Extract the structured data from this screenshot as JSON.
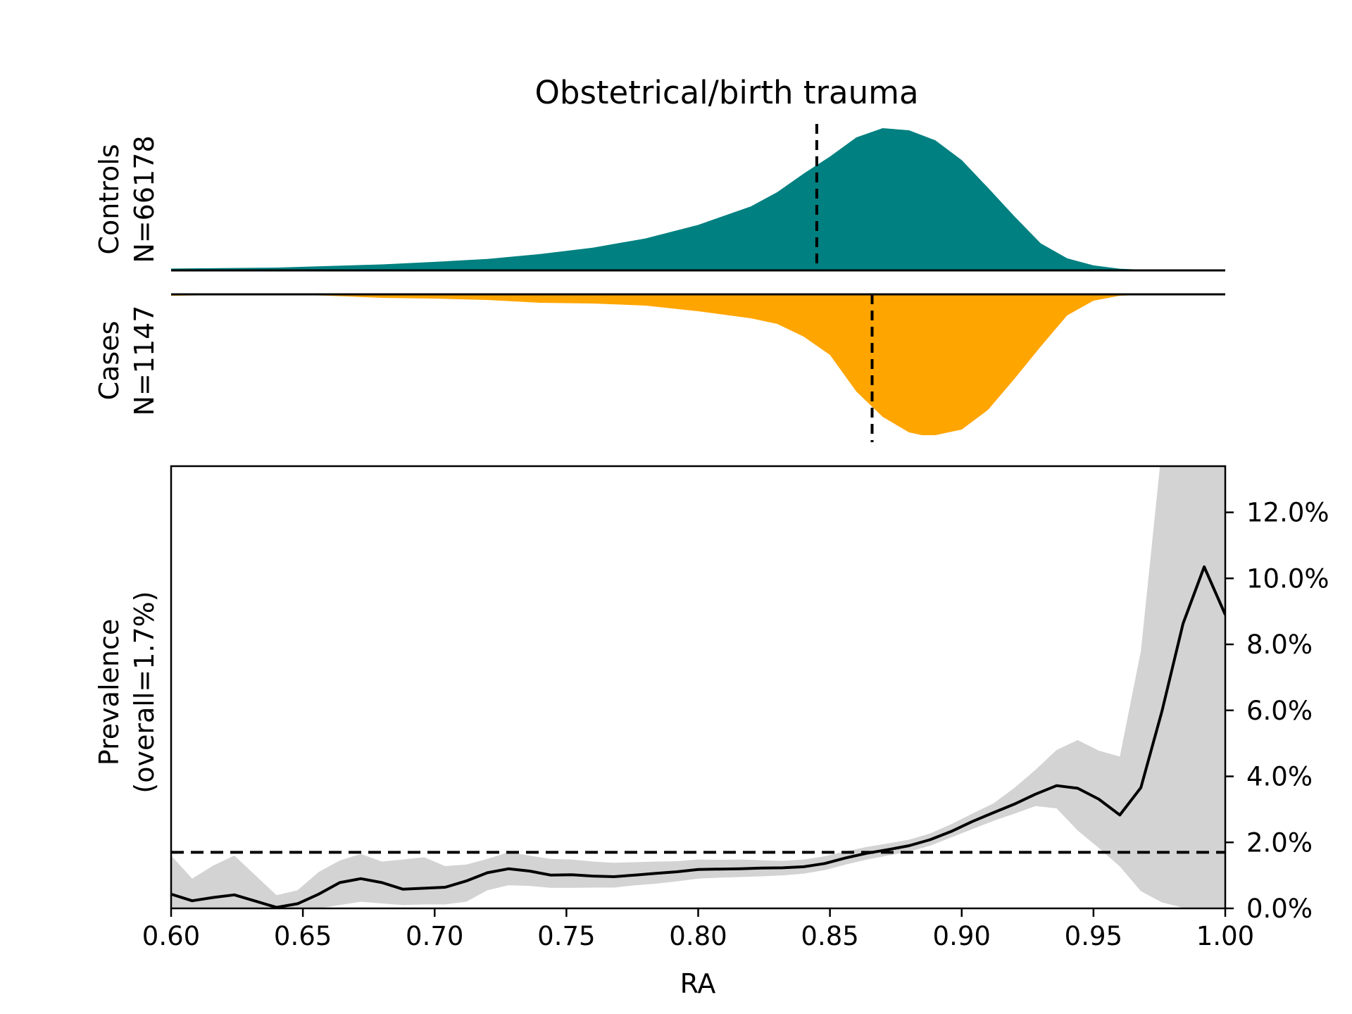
{
  "chart_data": {
    "type": "area",
    "title": "Obstetrical/birth trauma",
    "xlabel": "RA",
    "xlim": [
      0.6,
      1.0
    ],
    "x_ticks": [
      "0.60",
      "0.65",
      "0.70",
      "0.75",
      "0.80",
      "0.85",
      "0.90",
      "0.95",
      "1.00"
    ],
    "colors": {
      "controls": "#008080",
      "cases": "#FFA500",
      "ci_band": "#D3D3D3",
      "line": "#000000"
    },
    "controls": {
      "label_line1": "Controls",
      "label_line2": "N=66178",
      "median_ra": 0.845,
      "density_x": [
        0.6,
        0.64,
        0.68,
        0.7,
        0.72,
        0.74,
        0.76,
        0.78,
        0.8,
        0.82,
        0.83,
        0.84,
        0.85,
        0.86,
        0.87,
        0.88,
        0.89,
        0.9,
        0.91,
        0.92,
        0.93,
        0.94,
        0.95,
        0.96,
        0.97,
        0.98,
        0.99,
        1.0
      ],
      "density_y": [
        0.013,
        0.02,
        0.042,
        0.06,
        0.08,
        0.115,
        0.16,
        0.225,
        0.32,
        0.45,
        0.55,
        0.68,
        0.8,
        0.935,
        1.0,
        0.985,
        0.915,
        0.775,
        0.58,
        0.38,
        0.19,
        0.085,
        0.035,
        0.012,
        0.004,
        0.001,
        0.0,
        0.0
      ]
    },
    "cases": {
      "label_line1": "Cases",
      "label_line2": "N=1147",
      "median_ra": 0.866,
      "density_x": [
        0.6,
        0.64,
        0.66,
        0.68,
        0.7,
        0.72,
        0.74,
        0.76,
        0.78,
        0.8,
        0.82,
        0.83,
        0.84,
        0.85,
        0.86,
        0.87,
        0.88,
        0.885,
        0.89,
        0.9,
        0.91,
        0.92,
        0.93,
        0.94,
        0.95,
        0.96,
        0.97,
        1.0
      ],
      "density_y": [
        0.01,
        0.0,
        0.01,
        0.025,
        0.03,
        0.04,
        0.06,
        0.065,
        0.08,
        0.12,
        0.17,
        0.21,
        0.3,
        0.43,
        0.69,
        0.87,
        0.98,
        1.0,
        1.0,
        0.96,
        0.82,
        0.6,
        0.37,
        0.15,
        0.045,
        0.01,
        0.003,
        0.0
      ]
    },
    "prevalence": {
      "ylabel_line1": "Prevalence",
      "ylabel_line2": "(overall=1.7%)",
      "overall": 0.017,
      "ylim": [
        0,
        0.134
      ],
      "y_ticks": [
        {
          "value": 0.0,
          "label": "0.0%"
        },
        {
          "value": 0.02,
          "label": "2.0%"
        },
        {
          "value": 0.04,
          "label": "4.0%"
        },
        {
          "value": 0.06,
          "label": "6.0%"
        },
        {
          "value": 0.08,
          "label": "8.0%"
        },
        {
          "value": 0.1,
          "label": "10.0%"
        },
        {
          "value": 0.12,
          "label": "12.0%"
        }
      ],
      "x": [
        0.6,
        0.608,
        0.616,
        0.624,
        0.632,
        0.64,
        0.648,
        0.656,
        0.664,
        0.672,
        0.68,
        0.688,
        0.696,
        0.704,
        0.712,
        0.72,
        0.728,
        0.736,
        0.744,
        0.752,
        0.76,
        0.768,
        0.776,
        0.784,
        0.792,
        0.8,
        0.808,
        0.816,
        0.824,
        0.832,
        0.84,
        0.848,
        0.856,
        0.864,
        0.872,
        0.88,
        0.888,
        0.896,
        0.904,
        0.912,
        0.92,
        0.928,
        0.936,
        0.944,
        0.952,
        0.96,
        0.968,
        0.976,
        0.984,
        0.992,
        1.0
      ],
      "y": [
        0.0043,
        0.0023,
        0.0033,
        0.0041,
        0.0022,
        0.0003,
        0.0014,
        0.0043,
        0.0078,
        0.009,
        0.0078,
        0.0058,
        0.0061,
        0.0064,
        0.0083,
        0.0108,
        0.012,
        0.0113,
        0.0101,
        0.0102,
        0.0098,
        0.0096,
        0.0101,
        0.0106,
        0.0111,
        0.0118,
        0.0119,
        0.012,
        0.0122,
        0.0123,
        0.0126,
        0.0136,
        0.0153,
        0.0167,
        0.0178,
        0.019,
        0.0208,
        0.0233,
        0.0263,
        0.029,
        0.0316,
        0.0346,
        0.0372,
        0.0364,
        0.0331,
        0.0283,
        0.0366,
        0.0598,
        0.0863,
        0.1035,
        0.089
      ],
      "lower": [
        0.0,
        0.0,
        0.0,
        0.0,
        0.0,
        0.0,
        0.0,
        0.0,
        0.001,
        0.002,
        0.0015,
        0.001,
        0.0012,
        0.0012,
        0.002,
        0.0055,
        0.007,
        0.0068,
        0.0062,
        0.0062,
        0.0063,
        0.0063,
        0.007,
        0.0075,
        0.0082,
        0.009,
        0.0093,
        0.0095,
        0.0097,
        0.01,
        0.0105,
        0.0116,
        0.0133,
        0.0148,
        0.016,
        0.0172,
        0.019,
        0.0215,
        0.024,
        0.0265,
        0.0287,
        0.031,
        0.0303,
        0.0236,
        0.0183,
        0.0127,
        0.0052,
        0.0018,
        0.0002,
        0.0,
        0.0
      ],
      "upper": [
        0.016,
        0.009,
        0.013,
        0.016,
        0.01,
        0.004,
        0.0055,
        0.011,
        0.0145,
        0.0165,
        0.0142,
        0.0148,
        0.0155,
        0.0128,
        0.0133,
        0.015,
        0.017,
        0.016,
        0.015,
        0.0148,
        0.0142,
        0.0138,
        0.014,
        0.0142,
        0.0143,
        0.0148,
        0.0147,
        0.0148,
        0.0146,
        0.0144,
        0.0148,
        0.0158,
        0.0173,
        0.0186,
        0.0197,
        0.0208,
        0.0227,
        0.0255,
        0.0287,
        0.0318,
        0.0365,
        0.042,
        0.048,
        0.051,
        0.0478,
        0.046,
        0.078,
        0.14,
        0.16,
        0.16,
        0.16
      ]
    }
  }
}
